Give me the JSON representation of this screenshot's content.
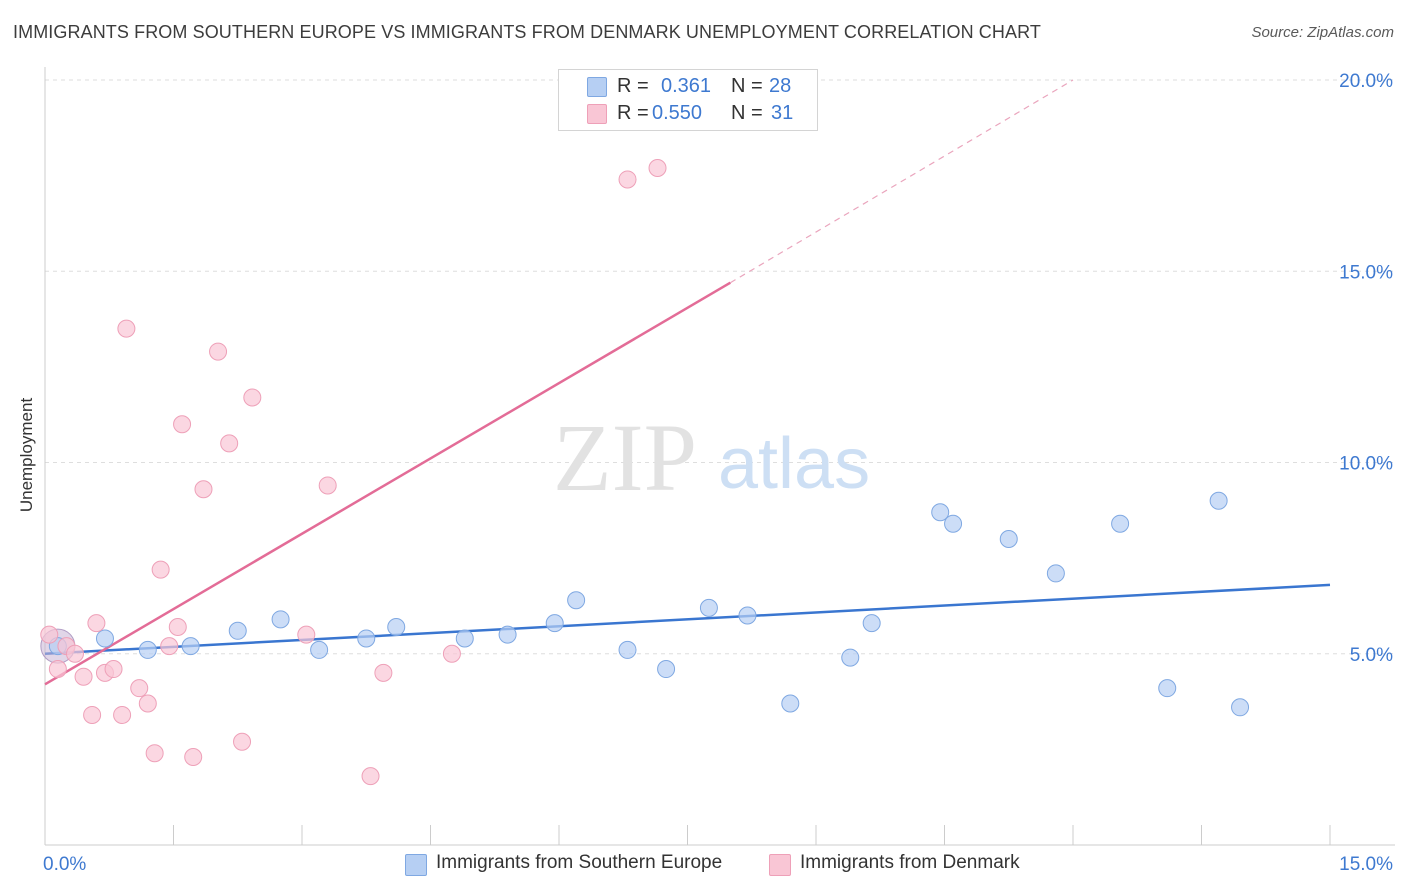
{
  "header": {
    "title": "IMMIGRANTS FROM SOUTHERN EUROPE VS IMMIGRANTS FROM DENMARK UNEMPLOYMENT CORRELATION CHART",
    "source": "Source: ZipAtlas.com"
  },
  "watermark": {
    "zip": "ZIP",
    "atlas": "atlas"
  },
  "stats": {
    "rows": [
      {
        "r_label": "R =",
        "r_value": "0.361",
        "n_label": "N =",
        "n_value": "28",
        "color": "#b6cff3"
      },
      {
        "r_label": "R =",
        "r_value": "0.550",
        "n_label": "N =",
        "n_value": "31",
        "color": "#f9c6d5"
      }
    ]
  },
  "legend": {
    "southern_europe": "Immigrants from Southern Europe",
    "denmark": "Immigrants from Denmark"
  },
  "chart_data": {
    "type": "scatter",
    "title": "IMMIGRANTS FROM SOUTHERN EUROPE VS IMMIGRANTS FROM DENMARK UNEMPLOYMENT CORRELATION CHART",
    "xlabel": "",
    "ylabel": "Unemployment",
    "xlim": [
      0,
      15
    ],
    "ylim": [
      0,
      20
    ],
    "x_tick_labels": [
      "0.0%",
      "15.0%"
    ],
    "y_ticks": [
      5,
      10,
      15,
      20
    ],
    "y_tick_labels": [
      "5.0%",
      "10.0%",
      "15.0%",
      "20.0%"
    ],
    "grid": true,
    "legend_position": "bottom",
    "colors": {
      "southern_europe_fill": "#b6cff3",
      "southern_europe_line": "#3a76d0",
      "denmark_fill": "#f9c6d5",
      "denmark_line": "#e36c97",
      "tick_label": "#3e79d0"
    },
    "series": [
      {
        "name": "Immigrants from Southern Europe",
        "points": [
          [
            0.15,
            5.2
          ],
          [
            0.7,
            5.4
          ],
          [
            1.2,
            5.1
          ],
          [
            1.7,
            5.2
          ],
          [
            2.25,
            5.6
          ],
          [
            2.75,
            5.9
          ],
          [
            3.2,
            5.1
          ],
          [
            3.75,
            5.4
          ],
          [
            4.1,
            5.7
          ],
          [
            4.9,
            5.4
          ],
          [
            5.4,
            5.5
          ],
          [
            5.95,
            5.8
          ],
          [
            6.2,
            6.4
          ],
          [
            6.8,
            5.1
          ],
          [
            7.25,
            4.6
          ],
          [
            7.75,
            6.2
          ],
          [
            8.2,
            6.0
          ],
          [
            8.7,
            3.7
          ],
          [
            9.4,
            4.9
          ],
          [
            9.65,
            5.8
          ],
          [
            10.45,
            8.7
          ],
          [
            10.6,
            8.4
          ],
          [
            11.25,
            8.0
          ],
          [
            11.8,
            7.1
          ],
          [
            12.55,
            8.4
          ],
          [
            13.1,
            4.1
          ],
          [
            13.7,
            9.0
          ],
          [
            13.95,
            3.6
          ]
        ],
        "trend": {
          "x1": 0.0,
          "y1": 5.0,
          "x2": 15.0,
          "y2": 6.8
        }
      },
      {
        "name": "Immigrants from Denmark",
        "points": [
          [
            0.05,
            5.5
          ],
          [
            0.15,
            4.6
          ],
          [
            0.25,
            5.2
          ],
          [
            0.35,
            5.0
          ],
          [
            0.45,
            4.4
          ],
          [
            0.55,
            3.4
          ],
          [
            0.6,
            5.8
          ],
          [
            0.7,
            4.5
          ],
          [
            0.8,
            4.6
          ],
          [
            0.9,
            3.4
          ],
          [
            0.95,
            13.5
          ],
          [
            1.1,
            4.1
          ],
          [
            1.2,
            3.7
          ],
          [
            1.28,
            2.4
          ],
          [
            1.35,
            7.2
          ],
          [
            1.45,
            5.2
          ],
          [
            1.55,
            5.7
          ],
          [
            1.6,
            11.0
          ],
          [
            1.73,
            2.3
          ],
          [
            1.85,
            9.3
          ],
          [
            2.02,
            12.9
          ],
          [
            2.15,
            10.5
          ],
          [
            2.3,
            2.7
          ],
          [
            2.42,
            11.7
          ],
          [
            3.05,
            5.5
          ],
          [
            3.3,
            9.4
          ],
          [
            3.8,
            1.8
          ],
          [
            3.95,
            4.5
          ],
          [
            4.75,
            5.0
          ],
          [
            6.8,
            17.4
          ],
          [
            7.15,
            17.7
          ]
        ],
        "trend": {
          "x1": 0.0,
          "y1": 4.2,
          "x2": 8.0,
          "y2": 14.7,
          "dash_to_x": 12.0,
          "dash_to_y": 20.0
        }
      }
    ]
  }
}
